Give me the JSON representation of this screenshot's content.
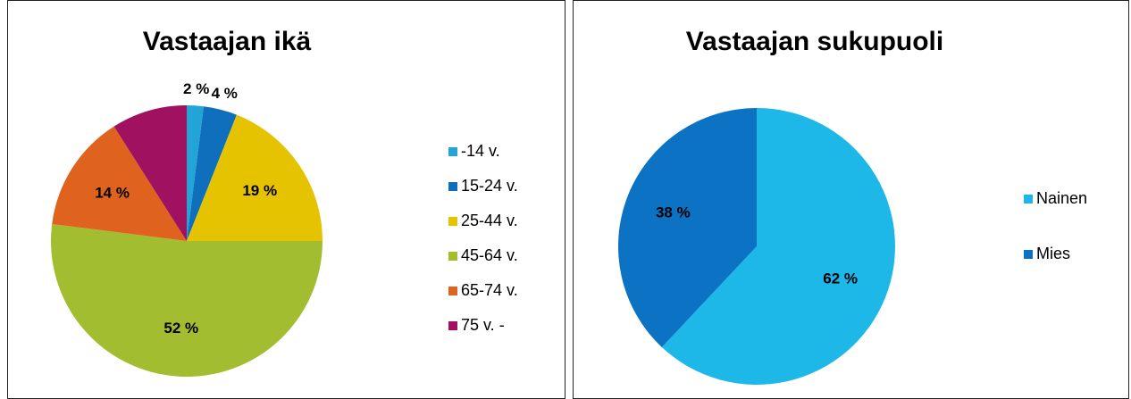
{
  "chart_data": [
    {
      "type": "pie",
      "title": "Vastaajan ikä",
      "categories": [
        "-14 v.",
        "15-24 v.",
        "25-44 v.",
        "45-64 v.",
        "65-74 v.",
        "75 v. -"
      ],
      "values": [
        2,
        4,
        19,
        52,
        14,
        9
      ],
      "value_labels": [
        "2 %",
        "4 %",
        "19 %",
        "52 %",
        "14 %",
        null
      ],
      "colors": [
        "#22a5d6",
        "#0f6fbd",
        "#e6c300",
        "#a3bd31",
        "#e0621f",
        "#a0115f"
      ],
      "legend": "right"
    },
    {
      "type": "pie",
      "title": "Vastaajan sukupuoli",
      "categories": [
        "Nainen",
        "Mies"
      ],
      "values": [
        62,
        38
      ],
      "value_labels": [
        "62 %",
        "38 %"
      ],
      "colors": [
        "#1db8e8",
        "#0b72c4"
      ],
      "legend": "right"
    }
  ]
}
